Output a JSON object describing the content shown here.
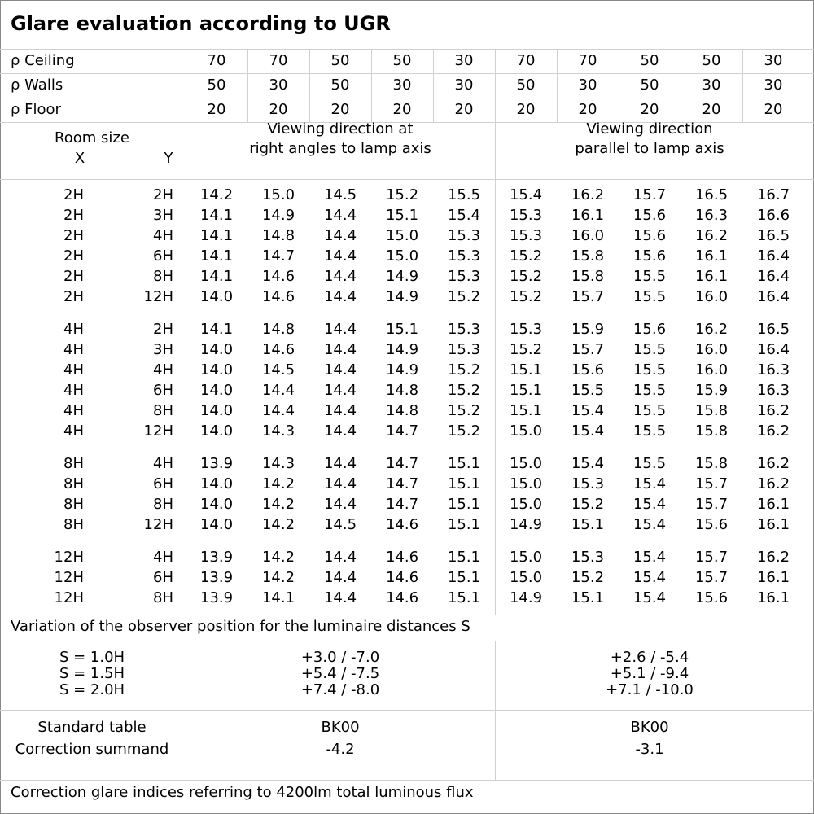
{
  "title": "Glare evaluation according to UGR",
  "reflectances": [
    {
      "label": "ρ Ceiling",
      "values": [
        "70",
        "70",
        "50",
        "50",
        "30",
        "70",
        "70",
        "50",
        "50",
        "30"
      ]
    },
    {
      "label": "ρ Walls",
      "values": [
        "50",
        "30",
        "50",
        "30",
        "30",
        "50",
        "30",
        "50",
        "30",
        "30"
      ]
    },
    {
      "label": "ρ Floor",
      "values": [
        "20",
        "20",
        "20",
        "20",
        "20",
        "20",
        "20",
        "20",
        "20",
        "20"
      ]
    }
  ],
  "header": {
    "room_size": "Room size",
    "x": "X",
    "y": "Y",
    "group_1": [
      "Viewing direction at",
      "right angles to lamp axis"
    ],
    "group_2": [
      "Viewing direction",
      "parallel to lamp axis"
    ]
  },
  "groups": [
    [
      [
        "2H",
        "2H",
        "14.2",
        "15.0",
        "14.5",
        "15.2",
        "15.5",
        "15.4",
        "16.2",
        "15.7",
        "16.5",
        "16.7"
      ],
      [
        "2H",
        "3H",
        "14.1",
        "14.9",
        "14.4",
        "15.1",
        "15.4",
        "15.3",
        "16.1",
        "15.6",
        "16.3",
        "16.6"
      ],
      [
        "2H",
        "4H",
        "14.1",
        "14.8",
        "14.4",
        "15.0",
        "15.3",
        "15.3",
        "16.0",
        "15.6",
        "16.2",
        "16.5"
      ],
      [
        "2H",
        "6H",
        "14.1",
        "14.7",
        "14.4",
        "15.0",
        "15.3",
        "15.2",
        "15.8",
        "15.6",
        "16.1",
        "16.4"
      ],
      [
        "2H",
        "8H",
        "14.1",
        "14.6",
        "14.4",
        "14.9",
        "15.3",
        "15.2",
        "15.8",
        "15.5",
        "16.1",
        "16.4"
      ],
      [
        "2H",
        "12H",
        "14.0",
        "14.6",
        "14.4",
        "14.9",
        "15.2",
        "15.2",
        "15.7",
        "15.5",
        "16.0",
        "16.4"
      ]
    ],
    [
      [
        "4H",
        "2H",
        "14.1",
        "14.8",
        "14.4",
        "15.1",
        "15.3",
        "15.3",
        "15.9",
        "15.6",
        "16.2",
        "16.5"
      ],
      [
        "4H",
        "3H",
        "14.0",
        "14.6",
        "14.4",
        "14.9",
        "15.3",
        "15.2",
        "15.7",
        "15.5",
        "16.0",
        "16.4"
      ],
      [
        "4H",
        "4H",
        "14.0",
        "14.5",
        "14.4",
        "14.9",
        "15.2",
        "15.1",
        "15.6",
        "15.5",
        "16.0",
        "16.3"
      ],
      [
        "4H",
        "6H",
        "14.0",
        "14.4",
        "14.4",
        "14.8",
        "15.2",
        "15.1",
        "15.5",
        "15.5",
        "15.9",
        "16.3"
      ],
      [
        "4H",
        "8H",
        "14.0",
        "14.4",
        "14.4",
        "14.8",
        "15.2",
        "15.1",
        "15.4",
        "15.5",
        "15.8",
        "16.2"
      ],
      [
        "4H",
        "12H",
        "14.0",
        "14.3",
        "14.4",
        "14.7",
        "15.2",
        "15.0",
        "15.4",
        "15.5",
        "15.8",
        "16.2"
      ]
    ],
    [
      [
        "8H",
        "4H",
        "13.9",
        "14.3",
        "14.4",
        "14.7",
        "15.1",
        "15.0",
        "15.4",
        "15.5",
        "15.8",
        "16.2"
      ],
      [
        "8H",
        "6H",
        "14.0",
        "14.2",
        "14.4",
        "14.7",
        "15.1",
        "15.0",
        "15.3",
        "15.4",
        "15.7",
        "16.2"
      ],
      [
        "8H",
        "8H",
        "14.0",
        "14.2",
        "14.4",
        "14.7",
        "15.1",
        "15.0",
        "15.2",
        "15.4",
        "15.7",
        "16.1"
      ],
      [
        "8H",
        "12H",
        "14.0",
        "14.2",
        "14.5",
        "14.6",
        "15.1",
        "14.9",
        "15.1",
        "15.4",
        "15.6",
        "16.1"
      ]
    ],
    [
      [
        "12H",
        "4H",
        "13.9",
        "14.2",
        "14.4",
        "14.6",
        "15.1",
        "15.0",
        "15.3",
        "15.4",
        "15.7",
        "16.2"
      ],
      [
        "12H",
        "6H",
        "13.9",
        "14.2",
        "14.4",
        "14.6",
        "15.1",
        "15.0",
        "15.2",
        "15.4",
        "15.7",
        "16.1"
      ],
      [
        "12H",
        "8H",
        "13.9",
        "14.1",
        "14.4",
        "14.6",
        "15.1",
        "14.9",
        "15.1",
        "15.4",
        "15.6",
        "16.1"
      ]
    ]
  ],
  "variation": {
    "title": "Variation of the observer position for the luminaire distances S",
    "rows": [
      [
        "S = 1.0H",
        "+3.0 / -7.0",
        "+2.6 / -5.4"
      ],
      [
        "S = 1.5H",
        "+5.4 / -7.5",
        "+5.1 / -9.4"
      ],
      [
        "S = 2.0H",
        "+7.4 / -8.0",
        "+7.1 / -10.0"
      ]
    ]
  },
  "standard": {
    "rows": [
      [
        "Standard table",
        "BK00",
        "BK00"
      ],
      [
        "Correction summand",
        "-4.2",
        "-3.1"
      ]
    ]
  },
  "footer": "Correction glare indices referring to 4200lm total luminous flux"
}
